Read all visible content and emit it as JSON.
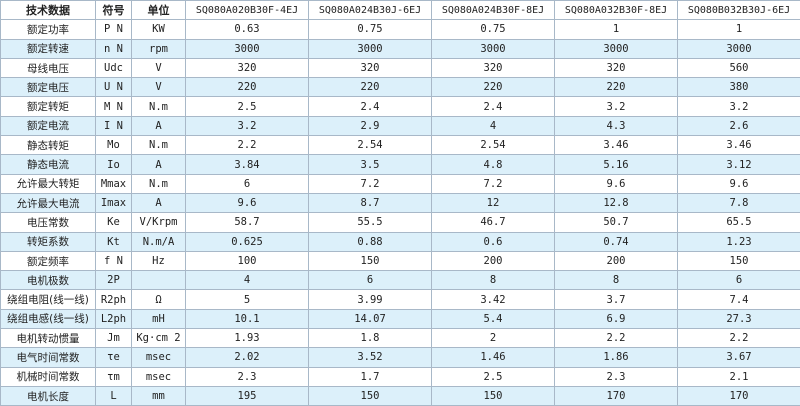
{
  "table": {
    "header": [
      "技术数据",
      "符号",
      "单位",
      "SQ080A020B30F-4EJ",
      "SQ080A024B30J-6EJ",
      "SQ080A024B30F-8EJ",
      "SQ080A032B30F-8EJ",
      "SQ080B032B30J-6EJ"
    ],
    "rows": [
      [
        "额定功率",
        "P N",
        "KW",
        "0.63",
        "0.75",
        "0.75",
        "1",
        "1"
      ],
      [
        "额定转速",
        "n N",
        "rpm",
        "3000",
        "3000",
        "3000",
        "3000",
        "3000"
      ],
      [
        "母线电压",
        "Udc",
        "V",
        "320",
        "320",
        "320",
        "320",
        "560"
      ],
      [
        "额定电压",
        "U N",
        "V",
        "220",
        "220",
        "220",
        "220",
        "380"
      ],
      [
        "额定转矩",
        "M N",
        "N.m",
        "2.5",
        "2.4",
        "2.4",
        "3.2",
        "3.2"
      ],
      [
        "额定电流",
        "I N",
        "A",
        "3.2",
        "2.9",
        "4",
        "4.3",
        "2.6"
      ],
      [
        "静态转矩",
        "Mo",
        "N.m",
        "2.2",
        "2.54",
        "2.54",
        "3.46",
        "3.46"
      ],
      [
        "静态电流",
        "Io",
        "A",
        "3.84",
        "3.5",
        "4.8",
        "5.16",
        "3.12"
      ],
      [
        "允许最大转矩",
        "Mmax",
        "N.m",
        "6",
        "7.2",
        "7.2",
        "9.6",
        "9.6"
      ],
      [
        "允许最大电流",
        "Imax",
        "A",
        "9.6",
        "8.7",
        "12",
        "12.8",
        "7.8"
      ],
      [
        "电压常数",
        "Ke",
        "V/Krpm",
        "58.7",
        "55.5",
        "46.7",
        "50.7",
        "65.5"
      ],
      [
        "转矩系数",
        "Kt",
        "N.m/A",
        "0.625",
        "0.88",
        "0.6",
        "0.74",
        "1.23"
      ],
      [
        "额定频率",
        "f N",
        "Hz",
        "100",
        "150",
        "200",
        "200",
        "150"
      ],
      [
        "电机极数",
        "2P",
        null,
        "4",
        "6",
        "8",
        "8",
        "6"
      ],
      [
        "绕组电阻(线一线)",
        "R2ph",
        "Ω",
        "5",
        "3.99",
        "3.42",
        "3.7",
        "7.4"
      ],
      [
        "绕组电感(线一线)",
        "L2ph",
        "mH",
        "10.1",
        "14.07",
        "5.4",
        "6.9",
        "27.3"
      ],
      [
        "电机转动惯量",
        "Jm",
        "Kg·cm 2",
        "1.93",
        "1.8",
        "2",
        "2.2",
        "2.2"
      ],
      [
        "电气时间常数",
        "τe",
        "msec",
        "2.02",
        "3.52",
        "1.46",
        "1.86",
        "3.67"
      ],
      [
        "机械时间常数",
        "τm",
        "msec",
        "2.3",
        "1.7",
        "2.5",
        "2.3",
        "2.1"
      ],
      [
        "电机长度",
        "L",
        "mm",
        "195",
        "150",
        "150",
        "170",
        "170"
      ]
    ]
  }
}
